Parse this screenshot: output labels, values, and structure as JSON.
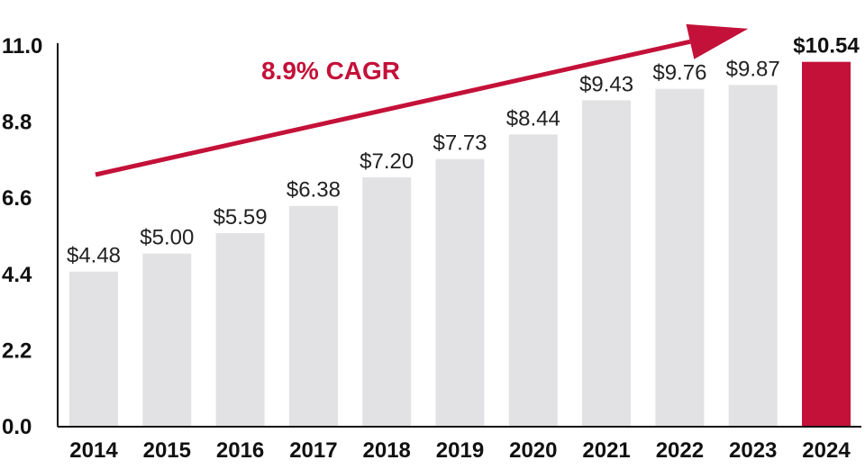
{
  "chart_data": {
    "type": "bar",
    "title": "",
    "xlabel": "",
    "ylabel": "",
    "categories": [
      "2014",
      "2015",
      "2016",
      "2017",
      "2018",
      "2019",
      "2020",
      "2021",
      "2022",
      "2023",
      "2024"
    ],
    "values": [
      4.48,
      5.0,
      5.59,
      6.38,
      7.2,
      7.73,
      8.44,
      9.43,
      9.76,
      9.87,
      10.54
    ],
    "value_labels": [
      "$4.48",
      "$5.00",
      "$5.59",
      "$6.38",
      "$7.20",
      "$7.73",
      "$8.44",
      "$9.43",
      "$9.76",
      "$9.87",
      "$10.54"
    ],
    "highlight_index": 10,
    "ylim": [
      0,
      11.0
    ],
    "yticks": [
      "0.0",
      "2.2",
      "4.4",
      "6.6",
      "8.8",
      "11.0"
    ],
    "grid": false,
    "annotation": {
      "text": "8.9% CAGR",
      "type": "trend-arrow"
    },
    "colors": {
      "bar": "#e2e2e4",
      "highlight_bar": "#c41139",
      "accent": "#c41139",
      "axis": "#111111"
    }
  }
}
